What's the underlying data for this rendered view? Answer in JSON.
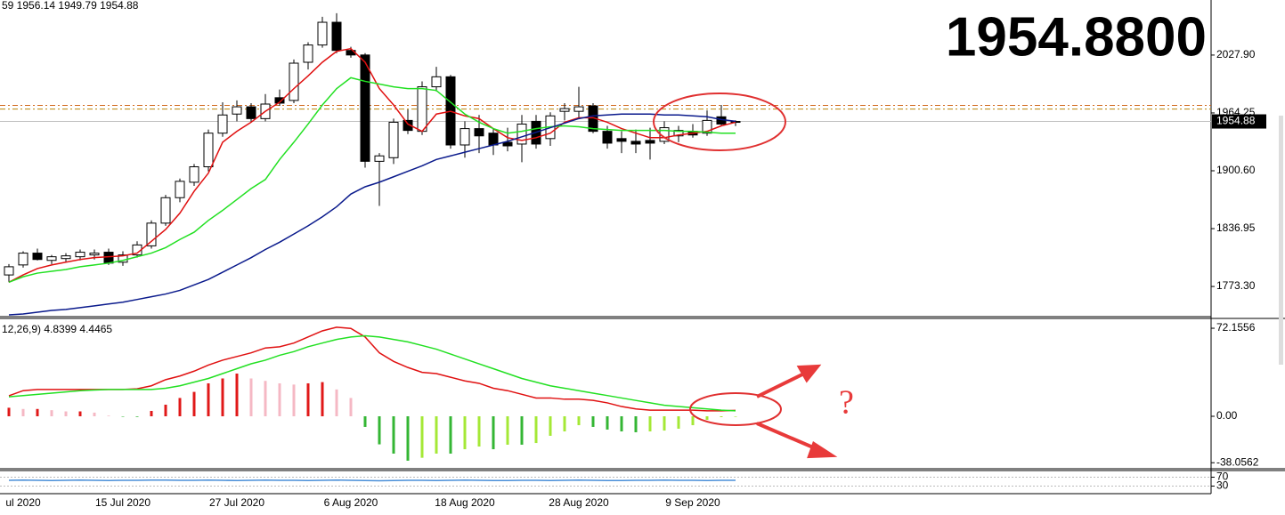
{
  "chart_data": [
    {
      "type": "candlestick",
      "header": "59 1956.14 1949.79 1954.88",
      "annotation": "1954.8800",
      "annotation_color": "#7cf000",
      "categories": [
        null,
        "ul 2020",
        null,
        null,
        null,
        null,
        null,
        null,
        "15 Jul 2020",
        null,
        null,
        null,
        null,
        null,
        null,
        null,
        "27 Jul 2020",
        null,
        null,
        null,
        null,
        null,
        null,
        null,
        "6 Aug 2020",
        null,
        null,
        null,
        null,
        null,
        null,
        null,
        "18 Aug 2020",
        null,
        null,
        null,
        null,
        null,
        null,
        null,
        "28 Aug 2020",
        null,
        null,
        null,
        null,
        null,
        null,
        null,
        "9 Sep 2020",
        null,
        null,
        null
      ],
      "open": [
        1786,
        1797,
        1810,
        1802,
        1804,
        1806,
        1808,
        1811,
        1800,
        1808,
        1818,
        1843,
        1871,
        1888,
        1905,
        1942,
        1963,
        1971,
        1958,
        1981,
        1978,
        2020,
        2039,
        2064,
        2033,
        2028,
        1911,
        1915,
        1956,
        1944,
        1993,
        2004,
        1929,
        1947,
        1942,
        1932,
        1930,
        1955,
        1936,
        1966,
        1966,
        1972,
        1944,
        1936,
        1933,
        1934,
        1933,
        1939,
        1944,
        1942,
        1960,
        1954.59
      ],
      "high": [
        1798,
        1812,
        1815,
        1808,
        1810,
        1814,
        1814,
        1815,
        1812,
        1823,
        1846,
        1874,
        1892,
        1908,
        1946,
        1976,
        1978,
        1975,
        1985,
        1990,
        2023,
        2042,
        2070,
        2074,
        2037,
        2030,
        1920,
        1958,
        1968,
        1999,
        2015,
        2006,
        1955,
        1962,
        1947,
        1948,
        1962,
        1962,
        1965,
        1975,
        1993,
        1975,
        1950,
        1944,
        1946,
        1948,
        1955,
        1950,
        1952,
        1967,
        1973,
        1956.14
      ],
      "low": [
        1778,
        1794,
        1802,
        1798,
        1800,
        1802,
        1803,
        1797,
        1796,
        1805,
        1815,
        1840,
        1866,
        1884,
        1900,
        1938,
        1955,
        1954,
        1955,
        1972,
        1975,
        2012,
        2036,
        2030,
        2025,
        1904,
        1862,
        1908,
        1941,
        1940,
        1988,
        1925,
        1915,
        1920,
        1918,
        1922,
        1910,
        1925,
        1928,
        1956,
        1958,
        1942,
        1925,
        1920,
        1920,
        1913,
        1930,
        1932,
        1937,
        1939,
        1950,
        1949.79
      ],
      "close": [
        1795,
        1810,
        1803,
        1806,
        1807,
        1811,
        1810,
        1799,
        1808,
        1819,
        1843,
        1871,
        1889,
        1905,
        1942,
        1962,
        1971,
        1958,
        1974,
        1975,
        2019,
        2039,
        2064,
        2033,
        2028,
        1911,
        1917,
        1954,
        1945,
        1993,
        2004,
        1929,
        1947,
        1939,
        1929,
        1928,
        1952,
        1930,
        1961,
        1969,
        1971,
        1944,
        1931,
        1933,
        1930,
        1931,
        1948,
        1945,
        1940,
        1956,
        1952,
        1954.88
      ],
      "up_color": "#ffffff",
      "down_color": "#000000",
      "lines": [
        {
          "color": "#e01010",
          "values": [
            1778,
            1786,
            1793,
            1797,
            1800,
            1803,
            1805,
            1806,
            1807,
            1810,
            1823,
            1836,
            1854,
            1878,
            1898,
            1932,
            1944,
            1954,
            1966,
            1976,
            1991,
            2005,
            2020,
            2032,
            2035,
            2020,
            1991,
            1973,
            1952,
            1944,
            1963,
            1966,
            1961,
            1958,
            1947,
            1937,
            1934,
            1937,
            1942,
            1954,
            1959,
            1959,
            1954,
            1947,
            1942,
            1937,
            1937,
            1940,
            1942,
            1944,
            1950,
            1954
          ]
        },
        {
          "color": "#22e022",
          "values": [
            1778,
            1784,
            1788,
            1790,
            1792,
            1795,
            1797,
            1799,
            1802,
            1806,
            1810,
            1816,
            1825,
            1833,
            1846,
            1857,
            1869,
            1881,
            1891,
            1913,
            1932,
            1952,
            1973,
            1991,
            2003,
            1999,
            1996,
            1993,
            1991,
            1991,
            1989,
            1976,
            1963,
            1954,
            1947,
            1942,
            1944,
            1947,
            1949,
            1950,
            1949,
            1947,
            1946,
            1945,
            1945,
            1945,
            1945,
            1944,
            1944,
            1943,
            1942,
            1942
          ]
        },
        {
          "color": "#0a1a8c",
          "values": [
            1742,
            1743,
            1745,
            1747,
            1748,
            1750,
            1752,
            1754,
            1756,
            1759,
            1762,
            1765,
            1769,
            1775,
            1781,
            1789,
            1797,
            1805,
            1814,
            1822,
            1831,
            1840,
            1850,
            1861,
            1875,
            1883,
            1888,
            1894,
            1900,
            1906,
            1913,
            1917,
            1921,
            1925,
            1929,
            1933,
            1938,
            1943,
            1948,
            1953,
            1958,
            1961,
            1962,
            1963,
            1963,
            1963,
            1962,
            1962,
            1961,
            1960,
            1957,
            1955
          ]
        }
      ],
      "levels": [
        {
          "value": 1972.5,
          "color": "#d2691e"
        },
        {
          "value": 1968.5,
          "color": "#b8860b"
        }
      ],
      "last_price": 1954.88,
      "ylim": [
        1740.1,
        2088.5
      ],
      "yticks": [
        {
          "value": 2027.9,
          "label": "2027.90"
        },
        1964.25,
        {
          "value": 1900.6,
          "label": "1900.60"
        },
        1836.95,
        {
          "value": 1773.3,
          "label": "1773.30"
        }
      ]
    },
    {
      "type": "macd",
      "header": "12,26,9) 4.8399 4.4465",
      "note": "?",
      "histogram": [
        7,
        6,
        6,
        5,
        4,
        4,
        3,
        0.5,
        -0.3,
        -0.5,
        4.4,
        9.5,
        15,
        20,
        27,
        31,
        35,
        31,
        29,
        27,
        26,
        27,
        28,
        22,
        15,
        -8.7,
        -23,
        -30.6,
        -36.4,
        -34,
        -30.6,
        -30.6,
        -27,
        -24.8,
        -27,
        -23.3,
        -23.3,
        -21.9,
        -16,
        -12.4,
        -7.3,
        -8.7,
        -10.9,
        -12.4,
        -13.1,
        -12.4,
        -11.7,
        -10.2,
        -7.3,
        -2.9,
        -0.7,
        -0.4
      ],
      "histogram_colors": {
        "rise_pos": "#e01818",
        "fall_pos": "#f5b8c4",
        "fall_neg": "#34b634",
        "rise_neg": "#a4e836"
      },
      "lines": [
        {
          "color": "#e01010",
          "values": [
            16.8,
            21,
            22,
            22,
            22,
            22,
            22,
            22,
            22,
            22.5,
            25,
            30,
            33,
            37,
            42,
            46,
            49,
            52,
            56,
            57,
            60,
            65,
            70,
            73,
            72,
            65,
            52,
            45,
            40,
            36,
            35,
            32,
            29,
            27,
            23,
            21,
            18,
            15,
            15,
            14,
            14,
            13,
            11,
            8,
            6,
            5,
            5,
            5,
            5,
            4.5,
            4.5,
            4.8399
          ]
        },
        {
          "color": "#22e022",
          "values": [
            16,
            17,
            18,
            19,
            20,
            21,
            21.5,
            22,
            22,
            22,
            22,
            23,
            25,
            28,
            31,
            35,
            39,
            43,
            46,
            50,
            53,
            57,
            60,
            63,
            65,
            66,
            65,
            63,
            61,
            58,
            55,
            51,
            47,
            43,
            39,
            35,
            31,
            28,
            25,
            23,
            21,
            19,
            17,
            15,
            13,
            11,
            9,
            8,
            7,
            6,
            5,
            4.4465
          ]
        }
      ],
      "ylim": [
        -43,
        80.2
      ],
      "yticks": [
        72.1556,
        {
          "value": 0,
          "label": "0.00"
        },
        -38.0562
      ]
    },
    {
      "type": "line",
      "color": "#4a8fd8",
      "values": [
        56,
        57,
        56,
        55,
        56,
        57,
        56,
        55,
        56,
        56,
        57,
        57,
        56,
        56,
        57,
        56,
        55,
        56,
        57,
        56,
        56,
        55,
        56,
        57,
        56,
        55,
        54,
        55,
        56,
        56,
        55,
        56,
        57,
        56,
        55,
        55,
        56,
        56,
        55,
        56,
        57,
        56,
        55,
        55,
        56,
        56,
        57,
        56,
        56,
        55,
        56,
        56
      ],
      "ylim": [
        0,
        100
      ],
      "yticks": [
        70,
        30
      ]
    }
  ]
}
